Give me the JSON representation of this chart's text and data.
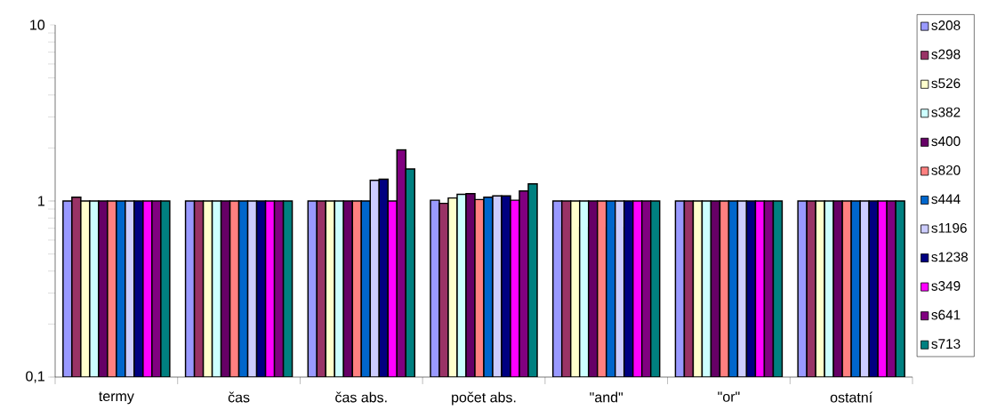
{
  "chart_data": {
    "type": "bar",
    "log": true,
    "legend": "right",
    "grid": false,
    "categories": [
      "termy",
      "čas",
      "čas abs.",
      "počet abs.",
      "\"and\"",
      "\"or\"",
      "ostatní"
    ],
    "ylim": [
      0.1,
      10
    ],
    "yticks": [
      {
        "value": 0.1,
        "label": "0,1"
      },
      1,
      10
    ],
    "series": [
      {
        "name": "s208",
        "color": "#9999ff",
        "values": [
          1,
          1,
          1,
          1.01,
          1,
          1,
          1
        ]
      },
      {
        "name": "s298",
        "color": "#993366",
        "values": [
          1.05,
          1,
          1,
          0.97,
          1,
          1,
          1
        ]
      },
      {
        "name": "s526",
        "color": "#ffffcc",
        "values": [
          1,
          1,
          1,
          1.04,
          1,
          1,
          1
        ]
      },
      {
        "name": "s382",
        "color": "#ccffff",
        "values": [
          1,
          1,
          1,
          1.09,
          1,
          1,
          1
        ]
      },
      {
        "name": "s400",
        "color": "#660066",
        "values": [
          1,
          1,
          1,
          1.1,
          1,
          1,
          1
        ]
      },
      {
        "name": "s820",
        "color": "#ff8080",
        "values": [
          1,
          1,
          1,
          1.02,
          1,
          1,
          1
        ]
      },
      {
        "name": "s444",
        "color": "#0066cc",
        "values": [
          1,
          1,
          1,
          1.05,
          1,
          1,
          1
        ]
      },
      {
        "name": "s1196",
        "color": "#ccccff",
        "values": [
          1,
          1,
          1.31,
          1.07,
          1,
          1,
          1
        ]
      },
      {
        "name": "s1238",
        "color": "#000080",
        "values": [
          1,
          1,
          1.33,
          1.07,
          1,
          1,
          1
        ]
      },
      {
        "name": "s349",
        "color": "#ff00ff",
        "values": [
          1,
          1,
          1,
          1.01,
          1,
          1,
          1
        ]
      },
      {
        "name": "s641",
        "color": "#800080",
        "values": [
          1,
          1,
          1.95,
          1.14,
          1,
          1,
          1
        ]
      },
      {
        "name": "s713",
        "color": "#008080",
        "values": [
          1,
          1,
          1.52,
          1.25,
          1,
          1,
          1
        ]
      }
    ]
  }
}
